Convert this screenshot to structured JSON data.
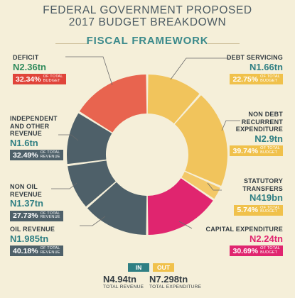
{
  "header": {
    "title_line1": "FEDERAL GOVERNMENT PROPOSED",
    "title_line2": "2017 BUDGET BREAKDOWN",
    "subtitle": "FISCAL FRAMEWORK"
  },
  "colors": {
    "revenue": "#4e6069",
    "deficit": "#e8644f",
    "recurrent": "#f1c45c",
    "transfers": "#f3c868",
    "capital": "#e0256f",
    "revenue_text": "#2f7f83",
    "deficit_text": "#2f8a5b",
    "badge_in": "#2f7f83",
    "badge_out": "#f0c14b"
  },
  "callouts": {
    "deficit": {
      "label": "DEFICIT",
      "amount": "N2.36tn",
      "percent": "32.34%",
      "of_line1": "OF TOTAL",
      "of_line2": "BUDGET"
    },
    "debt": {
      "label": "DEBT SERVICING",
      "amount": "N1.66tn",
      "percent": "22.75%",
      "of_line1": "OF TOTAL",
      "of_line2": "BUDGET"
    },
    "indep": {
      "label1": "INDEPENDENT",
      "label2": "AND OTHER",
      "label3": "REVENUE",
      "amount": "N1.6tn",
      "percent": "32.49%",
      "of_line1": "OF TOTAL",
      "of_line2": "REVENUE"
    },
    "nondebt": {
      "label1": "NON DEBT",
      "label2": "RECURRENT",
      "label3": "EXPENDITURE",
      "amount": "N2.9tn",
      "percent": "39.74%",
      "of_line1": "OF TOTAL",
      "of_line2": "BUDGET"
    },
    "nonoil": {
      "label1": "NON OIL",
      "label2": "REVENUE",
      "amount": "N1.37tn",
      "percent": "27.73%",
      "of_line1": "OF TOTAL",
      "of_line2": "REVENUE"
    },
    "statutory": {
      "label1": "STATUTORY",
      "label2": "TRANSFERS",
      "amount": "N419bn",
      "percent": "5.74%",
      "of_line1": "OF TOTAL",
      "of_line2": "BUDGET"
    },
    "oil": {
      "label": "OIL REVENUE",
      "amount": "N1.985tn",
      "percent": "40.18%",
      "of_line1": "OF TOTAL",
      "of_line2": "REVENUE"
    },
    "capital": {
      "label": "CAPITAL EXPENDITURE",
      "amount": "N2.24tn",
      "percent": "30.69%",
      "of_line1": "OF TOTAL",
      "of_line2": "BUDGET"
    }
  },
  "footer": {
    "in_label": "IN",
    "out_label": "OUT",
    "total_revenue": "N4.94tn",
    "total_revenue_label": "TOTAL REVENUE",
    "total_expenditure": "N7.298tn",
    "total_expenditure_label": "TOTAL EXPENDITURE"
  },
  "chart_data": {
    "type": "pie",
    "title": "FISCAL FRAMEWORK",
    "donut": true,
    "halves": [
      {
        "name": "IN",
        "side": "left",
        "total": "N4.94tn",
        "slices": [
          {
            "label": "OIL REVENUE",
            "value_tn": 1.985,
            "share": 40.18
          },
          {
            "label": "NON OIL REVENUE",
            "value_tn": 1.37,
            "share": 27.73
          },
          {
            "label": "INDEPENDENT AND OTHER REVENUE",
            "value_tn": 1.6,
            "share": 32.49
          },
          {
            "label": "DEFICIT",
            "value_tn": 2.36,
            "share": 32.34
          }
        ]
      },
      {
        "name": "OUT",
        "side": "right",
        "total": "N7.298tn",
        "slices": [
          {
            "label": "DEBT SERVICING",
            "value_tn": 1.66,
            "share": 22.75
          },
          {
            "label": "NON DEBT RECURRENT EXPENDITURE",
            "value_tn": 2.9,
            "share": 39.74
          },
          {
            "label": "STATUTORY TRANSFERS",
            "value_tn": 0.419,
            "share": 5.74
          },
          {
            "label": "CAPITAL EXPENDITURE",
            "value_tn": 2.24,
            "share": 30.69
          }
        ]
      }
    ]
  }
}
